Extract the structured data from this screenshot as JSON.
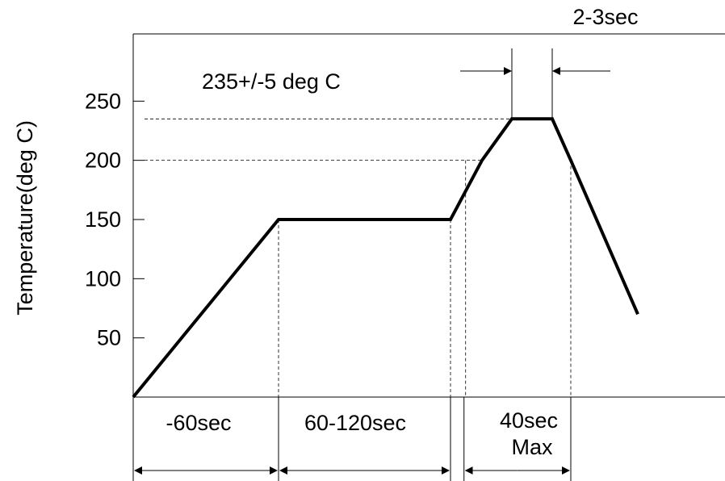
{
  "chart_data": {
    "type": "line",
    "ylabel": "Temperature(deg C)",
    "xlabel": "",
    "yticks": [
      50,
      100,
      150,
      200,
      250
    ],
    "profile": [
      {
        "t": 0,
        "temp": 0
      },
      {
        "t": 60,
        "temp": 150
      },
      {
        "t": 130,
        "temp": 150
      },
      {
        "t": 155,
        "temp": 200
      },
      {
        "t": 180,
        "temp": 235
      },
      {
        "t": 197,
        "temp": 235
      },
      {
        "t": 205,
        "temp": 200
      },
      {
        "t": 235,
        "temp": 70
      }
    ],
    "reference_lines": [
      {
        "temp": 235,
        "label": "235+/-5 deg C"
      },
      {
        "temp": 200,
        "label": ""
      }
    ],
    "intervals": [
      {
        "from": 0,
        "to": 60,
        "label": "-60sec"
      },
      {
        "from": 60,
        "to": 130,
        "label": "60-120sec"
      },
      {
        "from": 142,
        "to": 180,
        "label_line1": "40sec",
        "label_line2": "Max"
      }
    ],
    "peak_interval": {
      "from": 180,
      "to": 197,
      "label": "2-3sec"
    },
    "grid": false
  }
}
